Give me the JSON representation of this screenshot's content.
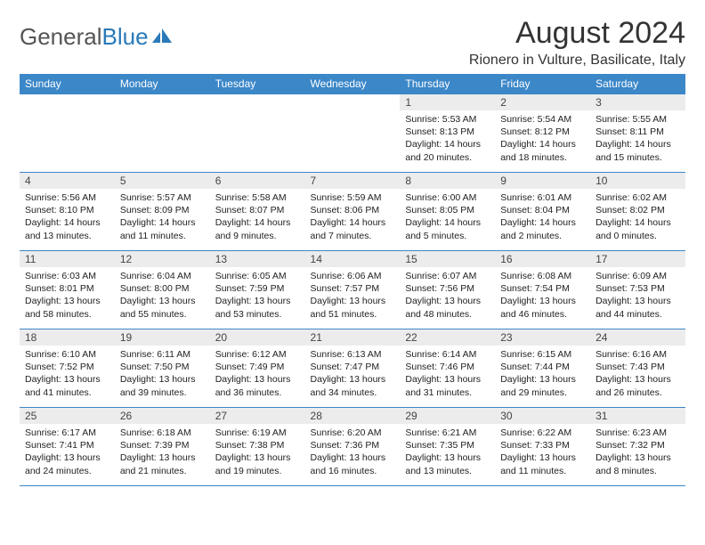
{
  "logo": {
    "text1": "General",
    "text2": "Blue"
  },
  "title": "August 2024",
  "subtitle": "Rionero in Vulture, Basilicate, Italy",
  "weekdays": [
    "Sunday",
    "Monday",
    "Tuesday",
    "Wednesday",
    "Thursday",
    "Friday",
    "Saturday"
  ],
  "colors": {
    "header_bg": "#3b87c8",
    "header_fg": "#ffffff",
    "daynum_bg": "#ececec",
    "border": "#3b87c8",
    "logo_blue": "#2a7ab9",
    "logo_grey": "#555555",
    "title_color": "#333333"
  },
  "weeks": [
    [
      {
        "n": "",
        "sr": "",
        "ss": "",
        "dl1": "",
        "dl2": "",
        "empty": true
      },
      {
        "n": "",
        "sr": "",
        "ss": "",
        "dl1": "",
        "dl2": "",
        "empty": true
      },
      {
        "n": "",
        "sr": "",
        "ss": "",
        "dl1": "",
        "dl2": "",
        "empty": true
      },
      {
        "n": "",
        "sr": "",
        "ss": "",
        "dl1": "",
        "dl2": "",
        "empty": true
      },
      {
        "n": "1",
        "sr": "Sunrise: 5:53 AM",
        "ss": "Sunset: 8:13 PM",
        "dl1": "Daylight: 14 hours",
        "dl2": "and 20 minutes."
      },
      {
        "n": "2",
        "sr": "Sunrise: 5:54 AM",
        "ss": "Sunset: 8:12 PM",
        "dl1": "Daylight: 14 hours",
        "dl2": "and 18 minutes."
      },
      {
        "n": "3",
        "sr": "Sunrise: 5:55 AM",
        "ss": "Sunset: 8:11 PM",
        "dl1": "Daylight: 14 hours",
        "dl2": "and 15 minutes."
      }
    ],
    [
      {
        "n": "4",
        "sr": "Sunrise: 5:56 AM",
        "ss": "Sunset: 8:10 PM",
        "dl1": "Daylight: 14 hours",
        "dl2": "and 13 minutes."
      },
      {
        "n": "5",
        "sr": "Sunrise: 5:57 AM",
        "ss": "Sunset: 8:09 PM",
        "dl1": "Daylight: 14 hours",
        "dl2": "and 11 minutes."
      },
      {
        "n": "6",
        "sr": "Sunrise: 5:58 AM",
        "ss": "Sunset: 8:07 PM",
        "dl1": "Daylight: 14 hours",
        "dl2": "and 9 minutes."
      },
      {
        "n": "7",
        "sr": "Sunrise: 5:59 AM",
        "ss": "Sunset: 8:06 PM",
        "dl1": "Daylight: 14 hours",
        "dl2": "and 7 minutes."
      },
      {
        "n": "8",
        "sr": "Sunrise: 6:00 AM",
        "ss": "Sunset: 8:05 PM",
        "dl1": "Daylight: 14 hours",
        "dl2": "and 5 minutes."
      },
      {
        "n": "9",
        "sr": "Sunrise: 6:01 AM",
        "ss": "Sunset: 8:04 PM",
        "dl1": "Daylight: 14 hours",
        "dl2": "and 2 minutes."
      },
      {
        "n": "10",
        "sr": "Sunrise: 6:02 AM",
        "ss": "Sunset: 8:02 PM",
        "dl1": "Daylight: 14 hours",
        "dl2": "and 0 minutes."
      }
    ],
    [
      {
        "n": "11",
        "sr": "Sunrise: 6:03 AM",
        "ss": "Sunset: 8:01 PM",
        "dl1": "Daylight: 13 hours",
        "dl2": "and 58 minutes."
      },
      {
        "n": "12",
        "sr": "Sunrise: 6:04 AM",
        "ss": "Sunset: 8:00 PM",
        "dl1": "Daylight: 13 hours",
        "dl2": "and 55 minutes."
      },
      {
        "n": "13",
        "sr": "Sunrise: 6:05 AM",
        "ss": "Sunset: 7:59 PM",
        "dl1": "Daylight: 13 hours",
        "dl2": "and 53 minutes."
      },
      {
        "n": "14",
        "sr": "Sunrise: 6:06 AM",
        "ss": "Sunset: 7:57 PM",
        "dl1": "Daylight: 13 hours",
        "dl2": "and 51 minutes."
      },
      {
        "n": "15",
        "sr": "Sunrise: 6:07 AM",
        "ss": "Sunset: 7:56 PM",
        "dl1": "Daylight: 13 hours",
        "dl2": "and 48 minutes."
      },
      {
        "n": "16",
        "sr": "Sunrise: 6:08 AM",
        "ss": "Sunset: 7:54 PM",
        "dl1": "Daylight: 13 hours",
        "dl2": "and 46 minutes."
      },
      {
        "n": "17",
        "sr": "Sunrise: 6:09 AM",
        "ss": "Sunset: 7:53 PM",
        "dl1": "Daylight: 13 hours",
        "dl2": "and 44 minutes."
      }
    ],
    [
      {
        "n": "18",
        "sr": "Sunrise: 6:10 AM",
        "ss": "Sunset: 7:52 PM",
        "dl1": "Daylight: 13 hours",
        "dl2": "and 41 minutes."
      },
      {
        "n": "19",
        "sr": "Sunrise: 6:11 AM",
        "ss": "Sunset: 7:50 PM",
        "dl1": "Daylight: 13 hours",
        "dl2": "and 39 minutes."
      },
      {
        "n": "20",
        "sr": "Sunrise: 6:12 AM",
        "ss": "Sunset: 7:49 PM",
        "dl1": "Daylight: 13 hours",
        "dl2": "and 36 minutes."
      },
      {
        "n": "21",
        "sr": "Sunrise: 6:13 AM",
        "ss": "Sunset: 7:47 PM",
        "dl1": "Daylight: 13 hours",
        "dl2": "and 34 minutes."
      },
      {
        "n": "22",
        "sr": "Sunrise: 6:14 AM",
        "ss": "Sunset: 7:46 PM",
        "dl1": "Daylight: 13 hours",
        "dl2": "and 31 minutes."
      },
      {
        "n": "23",
        "sr": "Sunrise: 6:15 AM",
        "ss": "Sunset: 7:44 PM",
        "dl1": "Daylight: 13 hours",
        "dl2": "and 29 minutes."
      },
      {
        "n": "24",
        "sr": "Sunrise: 6:16 AM",
        "ss": "Sunset: 7:43 PM",
        "dl1": "Daylight: 13 hours",
        "dl2": "and 26 minutes."
      }
    ],
    [
      {
        "n": "25",
        "sr": "Sunrise: 6:17 AM",
        "ss": "Sunset: 7:41 PM",
        "dl1": "Daylight: 13 hours",
        "dl2": "and 24 minutes."
      },
      {
        "n": "26",
        "sr": "Sunrise: 6:18 AM",
        "ss": "Sunset: 7:39 PM",
        "dl1": "Daylight: 13 hours",
        "dl2": "and 21 minutes."
      },
      {
        "n": "27",
        "sr": "Sunrise: 6:19 AM",
        "ss": "Sunset: 7:38 PM",
        "dl1": "Daylight: 13 hours",
        "dl2": "and 19 minutes."
      },
      {
        "n": "28",
        "sr": "Sunrise: 6:20 AM",
        "ss": "Sunset: 7:36 PM",
        "dl1": "Daylight: 13 hours",
        "dl2": "and 16 minutes."
      },
      {
        "n": "29",
        "sr": "Sunrise: 6:21 AM",
        "ss": "Sunset: 7:35 PM",
        "dl1": "Daylight: 13 hours",
        "dl2": "and 13 minutes."
      },
      {
        "n": "30",
        "sr": "Sunrise: 6:22 AM",
        "ss": "Sunset: 7:33 PM",
        "dl1": "Daylight: 13 hours",
        "dl2": "and 11 minutes."
      },
      {
        "n": "31",
        "sr": "Sunrise: 6:23 AM",
        "ss": "Sunset: 7:32 PM",
        "dl1": "Daylight: 13 hours",
        "dl2": "and 8 minutes."
      }
    ]
  ]
}
